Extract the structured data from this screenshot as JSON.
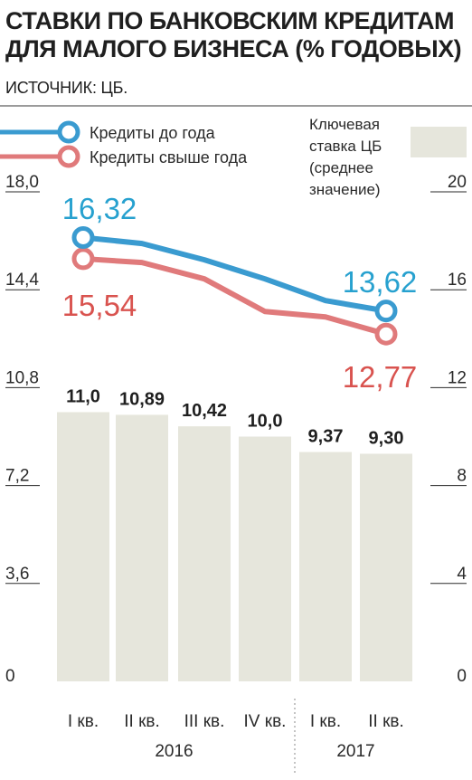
{
  "title": "СТАВКИ ПО БАНКОВСКИМ КРЕДИТАМ ДЛЯ МАЛОГО БИЗНЕСА (% ГОДОВЫХ)",
  "source": "ИСТОЧНИК: ЦБ.",
  "colors": {
    "short": "#3a9bd0",
    "long": "#e07a7b",
    "short_label": "#27a1cf",
    "long_label": "#d9534f",
    "bar": "#e6e6dc",
    "axis": "#2a2a2a"
  },
  "chart_data": {
    "type": "bar+line",
    "categories": [
      "I кв.",
      "II кв.",
      "III кв.",
      "IV кв.",
      "I кв.",
      "II кв."
    ],
    "years": [
      {
        "label": "2016",
        "span": [
          0,
          3
        ]
      },
      {
        "label": "2017",
        "span": [
          4,
          5
        ]
      }
    ],
    "left_axis": {
      "ylim": [
        0,
        18
      ],
      "ticks": [
        "0",
        "3,6",
        "7,2",
        "10,8",
        "14,4",
        "18,0"
      ],
      "tick_values": [
        0,
        3.6,
        7.2,
        10.8,
        14.4,
        18.0
      ]
    },
    "right_axis": {
      "ylim": [
        0,
        20
      ],
      "ticks": [
        "0",
        "4",
        "8",
        "12",
        "16",
        "20"
      ],
      "tick_values": [
        0,
        4,
        8,
        12,
        16,
        20
      ]
    },
    "bars": {
      "name": "Ключевая ставка ЦБ (среднее значение)",
      "values": [
        11.0,
        10.89,
        10.42,
        10.0,
        9.37,
        9.3
      ],
      "labels": [
        "11,0",
        "10,89",
        "10,42",
        "10,0",
        "9,37",
        "9,30"
      ],
      "axis": "right"
    },
    "series": [
      {
        "name": "Кредиты до года",
        "values": [
          16.32,
          16.1,
          15.5,
          14.8,
          14.0,
          13.62
        ],
        "first_label": "16,32",
        "last_label": "13,62",
        "axis": "left"
      },
      {
        "name": "Кредиты свыше года",
        "values": [
          15.54,
          15.4,
          14.8,
          13.6,
          13.4,
          12.77
        ],
        "first_label": "15,54",
        "last_label": "12,77",
        "axis": "left"
      }
    ],
    "legend_key_lines": [
      "Ключевая",
      "ставка ЦБ",
      "(среднее",
      "значение)"
    ],
    "legend_placement": "top"
  }
}
